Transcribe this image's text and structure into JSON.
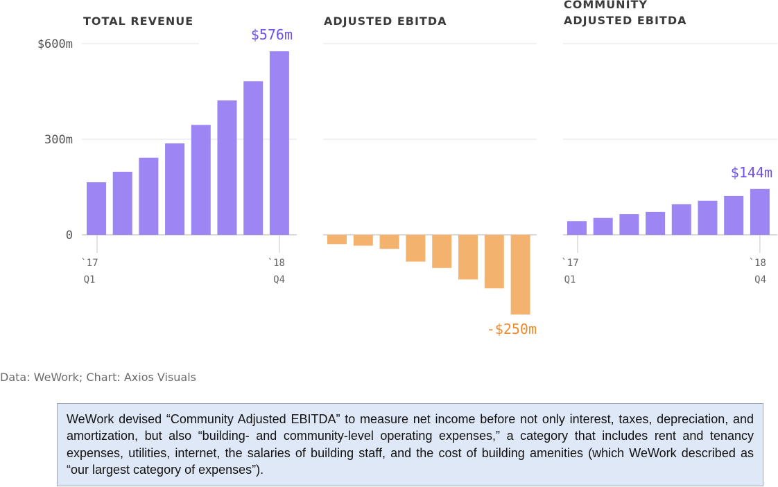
{
  "colors": {
    "revenue": "#9d86f4",
    "ebitda": "#f4b26f",
    "community": "#9d86f4",
    "callout_purple": "#6e4ff0",
    "callout_orange": "#f08a2a",
    "grid": "#e1e1e1"
  },
  "chart_data": [
    {
      "type": "bar",
      "title": "TOTAL REVENUE",
      "categories": [
        "Q1 2017",
        "Q2 2017",
        "Q3 2017",
        "Q4 2017",
        "Q1 2018",
        "Q2 2018",
        "Q3 2018",
        "Q4 2018"
      ],
      "values": [
        165,
        198,
        242,
        287,
        345,
        422,
        482,
        576
      ],
      "ylim": [
        0,
        600
      ],
      "yticks": [
        "$600m",
        "300m",
        "0"
      ],
      "ytick_values": [
        600,
        300,
        0
      ],
      "xticks_start": [
        "`17",
        "Q1"
      ],
      "xticks_end": [
        "`18",
        "Q4"
      ],
      "callout": "$576m",
      "grid": true
    },
    {
      "type": "bar",
      "title": "ADJUSTED EBITDA",
      "categories": [
        "Q1 2017",
        "Q2 2017",
        "Q3 2017",
        "Q4 2017",
        "Q1 2018",
        "Q2 2018",
        "Q3 2018",
        "Q4 2018"
      ],
      "values": [
        -29,
        -34,
        -44,
        -84,
        -104,
        -140,
        -168,
        -250
      ],
      "ylim": [
        0,
        600
      ],
      "callout": "-$250m",
      "grid": true
    },
    {
      "type": "bar",
      "title_lines": [
        "COMMUNITY",
        "ADJUSTED EBITDA"
      ],
      "categories": [
        "Q1 2017",
        "Q2 2017",
        "Q3 2017",
        "Q4 2017",
        "Q1 2018",
        "Q2 2018",
        "Q3 2018",
        "Q4 2018"
      ],
      "values": [
        43,
        53,
        65,
        72,
        96,
        107,
        122,
        144
      ],
      "ylim": [
        0,
        600
      ],
      "xticks_start": [
        "`17",
        "Q1"
      ],
      "xticks_end": [
        "`18",
        "Q4"
      ],
      "callout": "$144m",
      "grid": true
    }
  ],
  "source": "Data: WeWork; Chart: Axios Visuals",
  "note": "WeWork devised “Community Adjusted EBITDA” to measure net income before not only interest, taxes, depreciation, and amortization, but also “building- and community-level operating expenses,” a category that includes rent and tenancy expenses, utilities, internet, the salaries of building staff, and the cost of building amenities (which WeWork described as “our largest category of expenses”)."
}
